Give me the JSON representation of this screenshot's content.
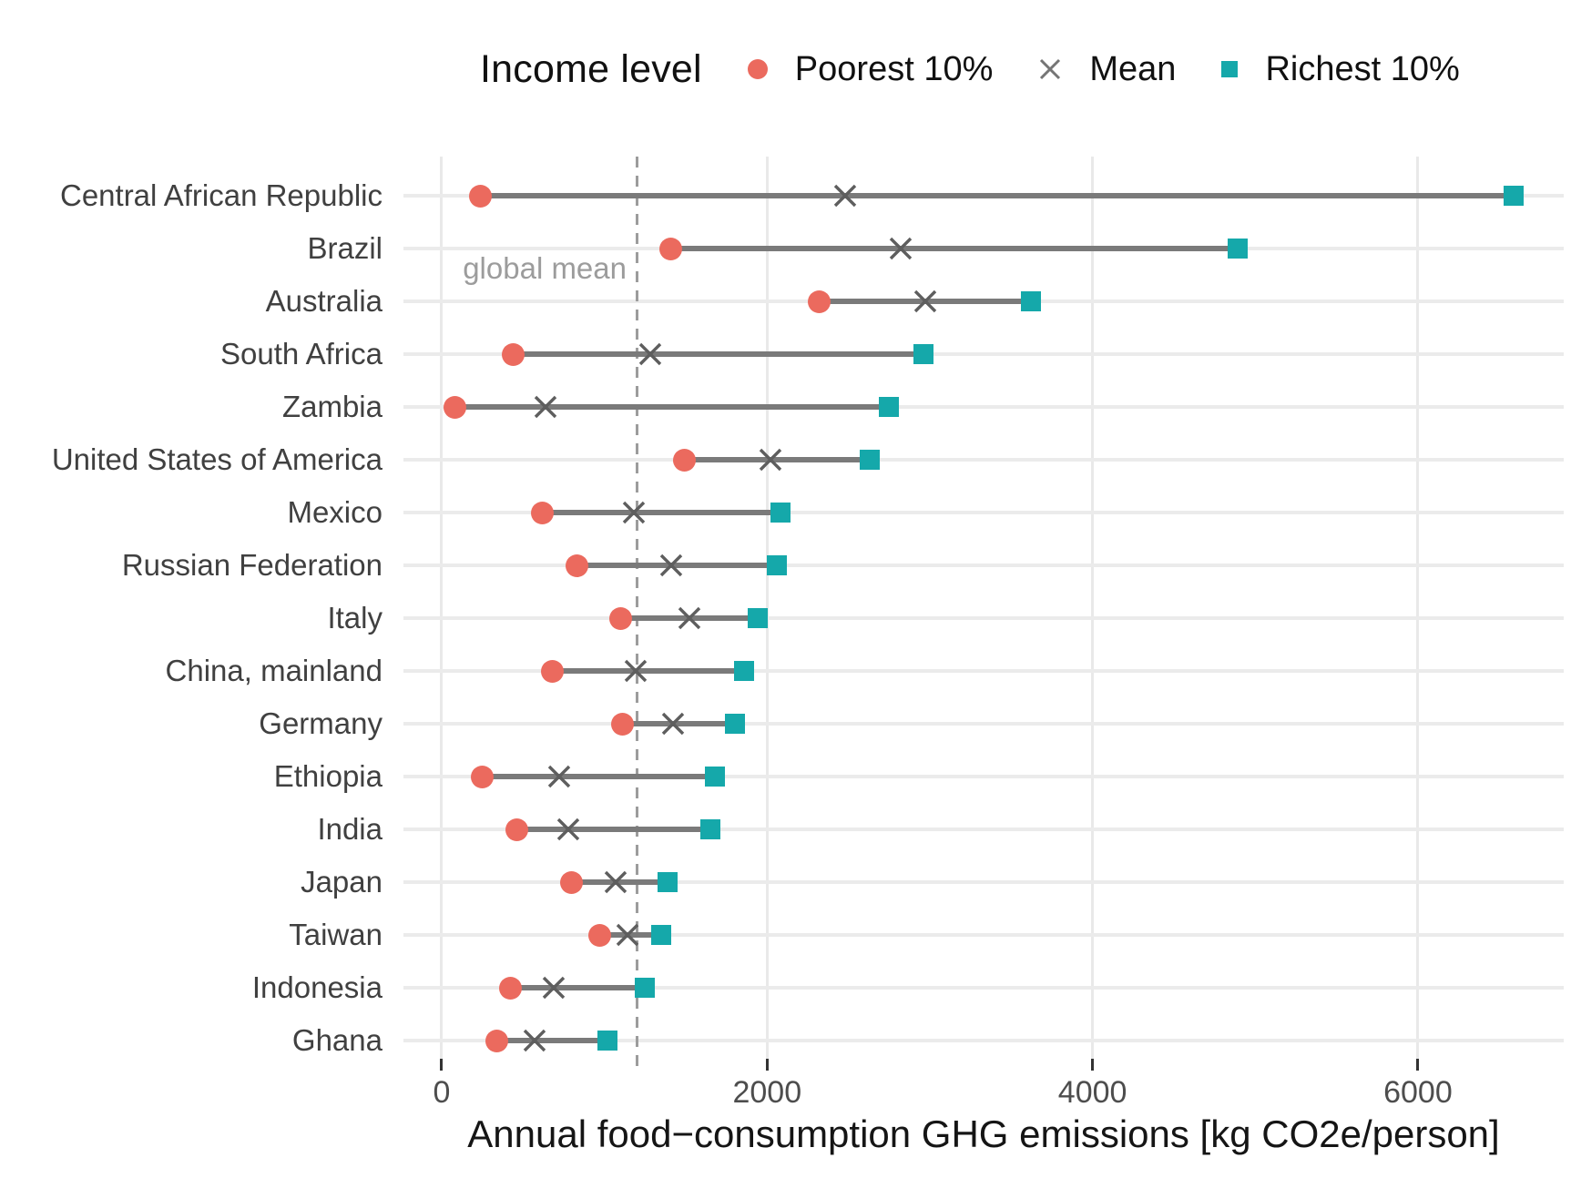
{
  "figure": {
    "background": "#FFFFFF"
  },
  "chart_data": {
    "type": "dumbbell",
    "title": "",
    "xlabel": "Annual food−consumption GHG emissions [kg CO2e/person]",
    "ylabel": "",
    "x_ticks": [
      0,
      2000,
      4000,
      6000
    ],
    "x_tick_labels": [
      "0",
      "2000",
      "4000",
      "6000"
    ],
    "xlim": [
      -235,
      6896
    ],
    "grid": "major vertical gridlines and one horizontal gridline per category, light gray on white",
    "legend_position": "top",
    "legend_title": "Income level",
    "series": [
      {
        "name": "Poorest 10%",
        "marker": "circle",
        "color": "#EB6A5E"
      },
      {
        "name": "Mean",
        "marker": "x",
        "color": "#5E5E5E"
      },
      {
        "name": "Richest 10%",
        "marker": "square",
        "color": "#15A8AA"
      }
    ],
    "annotation": {
      "label": "global mean",
      "value": 1200,
      "line_style": "dashed",
      "color": "#9C9C9C"
    },
    "rows": [
      {
        "country": "Central African Republic",
        "poorest": 240,
        "mean": 2480,
        "richest": 6590
      },
      {
        "country": "Brazil",
        "poorest": 1410,
        "mean": 2820,
        "richest": 4890
      },
      {
        "country": "Australia",
        "poorest": 2320,
        "mean": 2970,
        "richest": 3620
      },
      {
        "country": "South Africa",
        "poorest": 440,
        "mean": 1280,
        "richest": 2960
      },
      {
        "country": "Zambia",
        "poorest": 80,
        "mean": 640,
        "richest": 2750
      },
      {
        "country": "United States of America",
        "poorest": 1490,
        "mean": 2020,
        "richest": 2630
      },
      {
        "country": "Mexico",
        "poorest": 620,
        "mean": 1180,
        "richest": 2080
      },
      {
        "country": "Russian Federation",
        "poorest": 830,
        "mean": 1410,
        "richest": 2060
      },
      {
        "country": "Italy",
        "poorest": 1100,
        "mean": 1520,
        "richest": 1940
      },
      {
        "country": "China, mainland",
        "poorest": 680,
        "mean": 1190,
        "richest": 1860
      },
      {
        "country": "Germany",
        "poorest": 1110,
        "mean": 1420,
        "richest": 1800
      },
      {
        "country": "Ethiopia",
        "poorest": 250,
        "mean": 720,
        "richest": 1680
      },
      {
        "country": "India",
        "poorest": 460,
        "mean": 780,
        "richest": 1650
      },
      {
        "country": "Japan",
        "poorest": 800,
        "mean": 1070,
        "richest": 1390
      },
      {
        "country": "Taiwan",
        "poorest": 970,
        "mean": 1140,
        "richest": 1350
      },
      {
        "country": "Indonesia",
        "poorest": 420,
        "mean": 690,
        "richest": 1250
      },
      {
        "country": "Ghana",
        "poorest": 340,
        "mean": 570,
        "richest": 1020
      }
    ],
    "colors": {
      "segment": "#7A7A7A",
      "grid": "#E9E9E9",
      "row_grid": "#EBEBEB",
      "tick": "#333333",
      "tick_label": "#4D4D4D",
      "country_label": "#404040",
      "axis_title": "#151515",
      "annotation_text": "#9C9C9C",
      "legend_x": "#757575"
    }
  }
}
